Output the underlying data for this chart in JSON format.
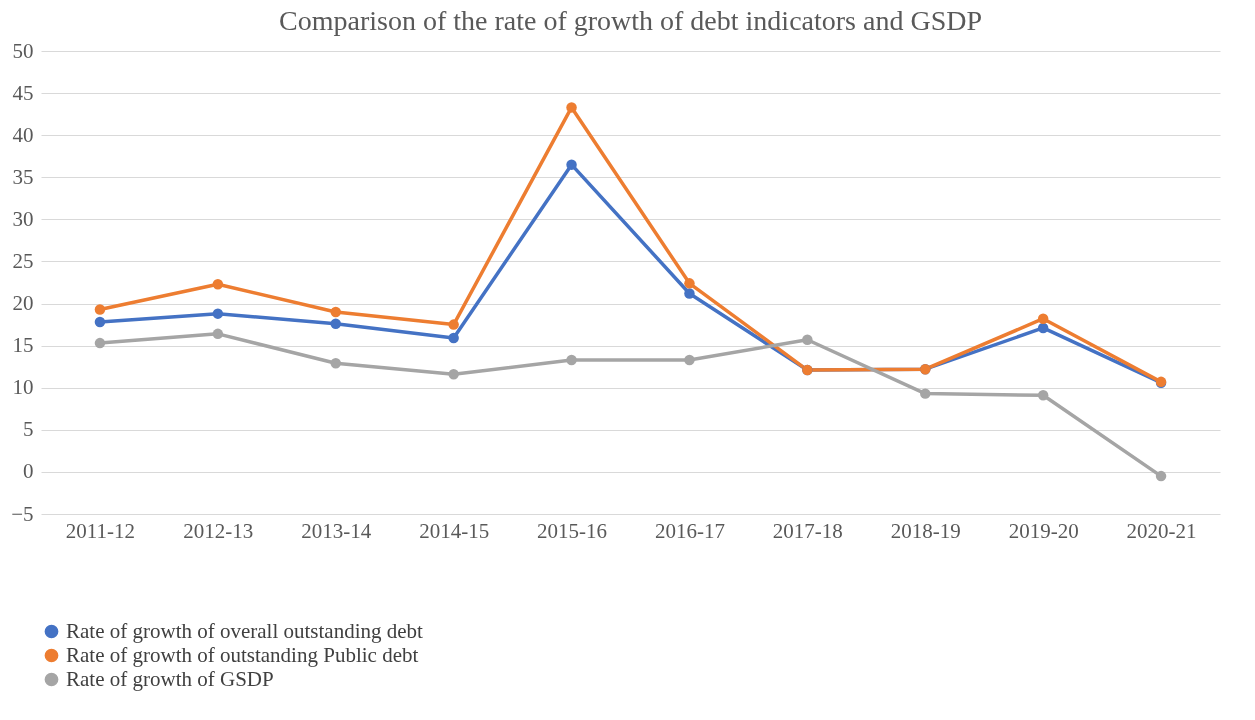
{
  "chart_data": {
    "type": "line",
    "title": "Comparison of the rate of growth of debt indicators and GSDP",
    "categories": [
      "2011-12",
      "2012-13",
      "2013-14",
      "2014-15",
      "2015-16",
      "2016-17",
      "2017-18",
      "2018-19",
      "2019-20",
      "2020-21"
    ],
    "series": [
      {
        "name": "Rate of growth of overall outstanding debt",
        "color": "#4472c4",
        "values": [
          17.8,
          18.8,
          17.6,
          15.9,
          36.5,
          21.2,
          12.1,
          12.2,
          17.1,
          10.6
        ]
      },
      {
        "name": "Rate of growth of outstanding Public debt",
        "color": "#ed7d31",
        "values": [
          19.3,
          22.3,
          19.0,
          17.5,
          43.3,
          22.4,
          12.1,
          12.2,
          18.2,
          10.7
        ]
      },
      {
        "name": "Rate of growth of GSDP",
        "color": "#a5a5a5",
        "values": [
          15.3,
          16.4,
          12.9,
          11.6,
          13.3,
          13.3,
          15.7,
          9.3,
          9.1,
          -0.5
        ]
      }
    ],
    "ylim": [
      -5,
      50
    ],
    "yticks": [
      -5,
      0,
      5,
      10,
      15,
      20,
      25,
      30,
      35,
      40,
      45,
      50
    ],
    "grid": "y",
    "legend": "bottom",
    "marker": "circle",
    "line_style": "solid"
  }
}
